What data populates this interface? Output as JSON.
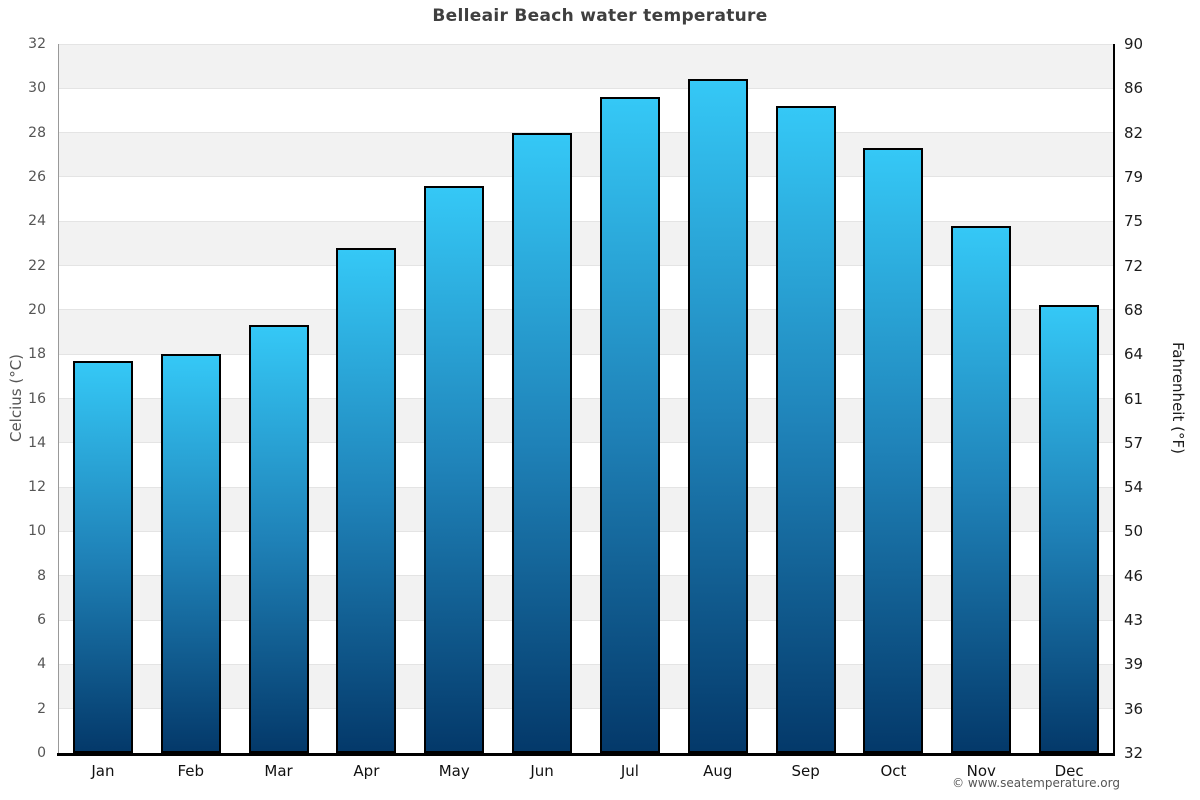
{
  "title": "Belleair Beach water temperature",
  "footer": "© www.seatemperature.org",
  "axes": {
    "left_label": "Celcius (°C)",
    "right_label": "Fahrenheit (°F)"
  },
  "chart_data": {
    "type": "bar",
    "title": "Belleair Beach water temperature",
    "categories": [
      "Jan",
      "Feb",
      "Mar",
      "Apr",
      "May",
      "Jun",
      "Jul",
      "Aug",
      "Sep",
      "Oct",
      "Nov",
      "Dec"
    ],
    "series": [
      {
        "name": "Water temperature (°C)",
        "values": [
          17.7,
          18.0,
          19.3,
          22.8,
          25.6,
          28.0,
          29.6,
          30.4,
          29.2,
          27.3,
          23.8,
          20.2
        ]
      }
    ],
    "xlabel": "",
    "ylabel_left": "Celcius (°C)",
    "ylabel_right": "Fahrenheit (°F)",
    "ylim_celsius": [
      0,
      32
    ],
    "yticks_celsius": [
      0,
      2,
      4,
      6,
      8,
      10,
      12,
      14,
      16,
      18,
      20,
      22,
      24,
      26,
      28,
      30,
      32
    ],
    "yticks_fahrenheit_labels": [
      "32",
      "36",
      "39",
      "43",
      "46",
      "50",
      "54",
      "57",
      "61",
      "64",
      "68",
      "72",
      "75",
      "79",
      "82",
      "86",
      "90"
    ],
    "grid": "alternating horizontal gray/white bands every 2°C with light gridlines",
    "legend": "none",
    "colors": {
      "bar_gradient_top": "#35c8f6",
      "bar_gradient_mid": "#1f82b8",
      "bar_gradient_bottom": "#04396a",
      "bar_border": "#000000",
      "band_fill": "#f2f2f2",
      "gridline": "#e4e4e4",
      "axis_left_line": "#999999",
      "axis_bottom_line": "#000000",
      "axis_right_line": "#000000",
      "title_color": "#3f3f3f",
      "left_tick_color": "#555555",
      "right_tick_color": "#1c1c1c",
      "month_label_color": "#111111"
    }
  }
}
